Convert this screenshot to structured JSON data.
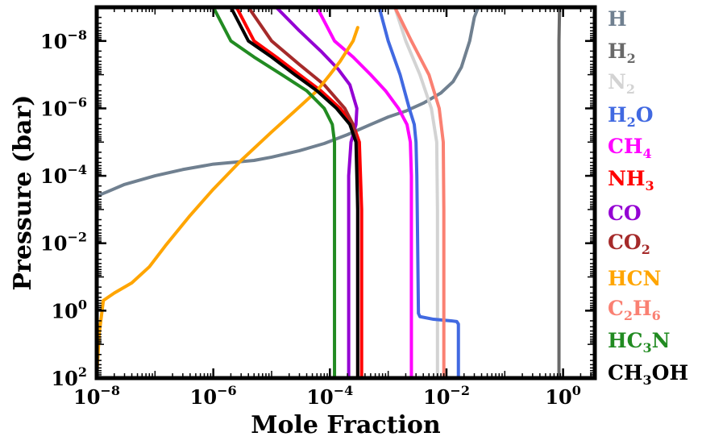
{
  "chart_data": {
    "type": "line",
    "xlabel": "Mole Fraction",
    "ylabel": "Pressure (bar)",
    "xscale": "log",
    "yscale": "log",
    "y_inverted": true,
    "xlim": [
      1e-08,
      3.5
    ],
    "ylim": [
      100,
      1e-09
    ],
    "x_ticks": [
      {
        "value": 1e-08,
        "base": "10",
        "exp": "−8"
      },
      {
        "value": 1e-06,
        "base": "10",
        "exp": "−6"
      },
      {
        "value": 0.0001,
        "base": "10",
        "exp": "−4"
      },
      {
        "value": 0.01,
        "base": "10",
        "exp": "−2"
      },
      {
        "value": 1,
        "base": "10",
        "exp": "0"
      }
    ],
    "y_ticks": [
      {
        "value": 1e-08,
        "base": "10",
        "exp": "−8"
      },
      {
        "value": 1e-06,
        "base": "10",
        "exp": "−6"
      },
      {
        "value": 0.0001,
        "base": "10",
        "exp": "−4"
      },
      {
        "value": 0.01,
        "base": "10",
        "exp": "−2"
      },
      {
        "value": 1,
        "base": "10",
        "exp": "0"
      },
      {
        "value": 100,
        "base": "10",
        "exp": "2"
      }
    ],
    "series": [
      {
        "name": "H",
        "main": "H",
        "sub": "",
        "color": "#708090",
        "points": [
          [
            1e-08,
            0.0004
          ],
          [
            1.5e-08,
            0.0003
          ],
          [
            3e-08,
            0.00018
          ],
          [
            1e-07,
            0.0001
          ],
          [
            3e-07,
            6.5e-05
          ],
          [
            1e-06,
            4.5e-05
          ],
          [
            5e-06,
            3.5e-05
          ],
          [
            1e-05,
            2.8e-05
          ],
          [
            3e-05,
            1.8e-05
          ],
          [
            8e-05,
            1.1e-05
          ],
          [
            0.0002,
            6e-06
          ],
          [
            0.0005,
            3e-06
          ],
          [
            0.001,
            1.8e-06
          ],
          [
            0.002,
            1.2e-06
          ],
          [
            0.004,
            7e-07
          ],
          [
            0.008,
            3.5e-07
          ],
          [
            0.013,
            1.6e-07
          ],
          [
            0.018,
            6e-08
          ],
          [
            0.025,
            1e-08
          ],
          [
            0.03,
            2e-09
          ],
          [
            0.035,
            1e-09
          ]
        ]
      },
      {
        "name": "H2",
        "main": "H",
        "sub": "2",
        "color": "#696969",
        "points": [
          [
            0.85,
            100
          ],
          [
            0.85,
            1e-08
          ],
          [
            0.87,
            1e-09
          ]
        ]
      },
      {
        "name": "N2",
        "main": "N",
        "sub": "2",
        "color": "#d3d3d3",
        "points": [
          [
            0.007,
            100
          ],
          [
            0.007,
            0.001
          ],
          [
            0.0068,
            1e-05
          ],
          [
            0.0055,
            1e-06
          ],
          [
            0.0035,
            1e-07
          ],
          [
            0.002,
            1e-08
          ],
          [
            0.0013,
            1e-09
          ]
        ]
      },
      {
        "name": "H2O",
        "main": "H",
        "sub": "2",
        "tail": "O",
        "color": "#4169e1",
        "points": [
          [
            0.016,
            100
          ],
          [
            0.016,
            2.5
          ],
          [
            0.015,
            2.1
          ],
          [
            0.012,
            2.0
          ],
          [
            0.006,
            1.8
          ],
          [
            0.0035,
            1.5
          ],
          [
            0.0033,
            1.2
          ],
          [
            0.0032,
            0.01
          ],
          [
            0.0031,
            0.0001
          ],
          [
            0.003,
            1e-05
          ],
          [
            0.0028,
            3e-06
          ],
          [
            0.0023,
            1e-06
          ],
          [
            0.0016,
            1e-07
          ],
          [
            0.001,
            1e-08
          ],
          [
            0.0007,
            1e-09
          ]
        ]
      },
      {
        "name": "CH4",
        "main": "CH",
        "sub": "4",
        "color": "#ff00ff",
        "points": [
          [
            0.0025,
            100
          ],
          [
            0.0025,
            0.0001
          ],
          [
            0.0024,
            1e-05
          ],
          [
            0.0021,
            3e-06
          ],
          [
            0.0015,
            1e-06
          ],
          [
            0.0009,
            3e-07
          ],
          [
            0.0005,
            1e-07
          ],
          [
            0.00025,
            3e-08
          ],
          [
            0.00012,
            1e-08
          ],
          [
            6e-05,
            1e-09
          ]
        ]
      },
      {
        "name": "NH3",
        "main": "NH",
        "sub": "3",
        "color": "#ff0000",
        "points": [
          [
            0.00035,
            100
          ],
          [
            0.00035,
            0.001
          ],
          [
            0.00032,
            1e-05
          ],
          [
            0.00025,
            3e-06
          ],
          [
            0.00015,
            1e-06
          ],
          [
            7e-05,
            3e-07
          ],
          [
            3e-05,
            1e-07
          ],
          [
            1.2e-05,
            3e-08
          ],
          [
            5e-06,
            1e-08
          ],
          [
            2.5e-06,
            1e-09
          ]
        ]
      },
      {
        "name": "CO",
        "main": "CO",
        "sub": "",
        "color": "#9400d3",
        "points": [
          [
            0.00021,
            100
          ],
          [
            0.00021,
            0.0001
          ],
          [
            0.00023,
            1e-05
          ],
          [
            0.00028,
            3e-06
          ],
          [
            0.00029,
            1e-06
          ],
          [
            0.00022,
            2e-07
          ],
          [
            0.00014,
            7e-08
          ],
          [
            7e-05,
            2e-08
          ],
          [
            3e-05,
            5e-09
          ],
          [
            1.2e-05,
            1e-09
          ]
        ]
      },
      {
        "name": "CO2",
        "main": "CO",
        "sub": "2",
        "color": "#a52a2a",
        "points": [
          [
            0.0003,
            100
          ],
          [
            0.0003,
            0.001
          ],
          [
            0.00029,
            1e-05
          ],
          [
            0.00025,
            3e-06
          ],
          [
            0.00018,
            1e-06
          ],
          [
            8e-05,
            2e-07
          ],
          [
            3e-05,
            5e-08
          ],
          [
            1e-05,
            1e-08
          ],
          [
            4e-06,
            1e-09
          ]
        ]
      },
      {
        "name": "HCN",
        "main": "HCN",
        "sub": "",
        "color": "#ffa500",
        "points": [
          [
            1e-08,
            100
          ],
          [
            1.1e-08,
            5
          ],
          [
            1.3e-08,
            0.5
          ],
          [
            2e-08,
            0.3
          ],
          [
            4e-08,
            0.15
          ],
          [
            8e-08,
            0.05
          ],
          [
            1.5e-07,
            0.012
          ],
          [
            4e-07,
            0.0015
          ],
          [
            1e-06,
            0.00025
          ],
          [
            3e-06,
            3.5e-05
          ],
          [
            1e-05,
            5e-06
          ],
          [
            2.5e-05,
            1.2e-06
          ],
          [
            6e-05,
            3e-07
          ],
          [
            0.0001,
            1e-07
          ],
          [
            0.00015,
            4e-08
          ],
          [
            0.00025,
            1e-08
          ],
          [
            0.0003,
            4e-09
          ]
        ]
      },
      {
        "name": "C2H6",
        "main": "C",
        "sub": "2",
        "tail": "H",
        "sub2": "6",
        "color": "#fa8072",
        "points": [
          [
            0.009,
            100
          ],
          [
            0.009,
            0.001
          ],
          [
            0.0088,
            1e-05
          ],
          [
            0.0075,
            1e-06
          ],
          [
            0.005,
            1e-07
          ],
          [
            0.0025,
            1e-08
          ],
          [
            0.0013,
            1e-09
          ]
        ]
      },
      {
        "name": "HC3N",
        "main": "HC",
        "sub": "3",
        "tail": "N",
        "color": "#228b22",
        "points": [
          [
            0.00012,
            100
          ],
          [
            0.00012,
            0.0001
          ],
          [
            0.00012,
            1e-05
          ],
          [
            0.00011,
            3e-06
          ],
          [
            8e-05,
            1e-06
          ],
          [
            4e-05,
            3e-07
          ],
          [
            1.5e-05,
            1e-07
          ],
          [
            5e-06,
            3e-08
          ],
          [
            2e-06,
            1e-08
          ],
          [
            1e-06,
            1e-09
          ]
        ]
      },
      {
        "name": "CH3OH",
        "main": "CH",
        "sub": "3",
        "tail": "OH",
        "color": "#000000",
        "points": [
          [
            0.0003,
            100
          ],
          [
            0.0003,
            0.001
          ],
          [
            0.00028,
            1e-05
          ],
          [
            0.00022,
            3e-06
          ],
          [
            0.00013,
            1e-06
          ],
          [
            6e-05,
            3e-07
          ],
          [
            2.5e-05,
            1e-07
          ],
          [
            1e-05,
            3e-08
          ],
          [
            4e-06,
            1e-08
          ],
          [
            2e-06,
            1e-09
          ]
        ]
      }
    ]
  }
}
